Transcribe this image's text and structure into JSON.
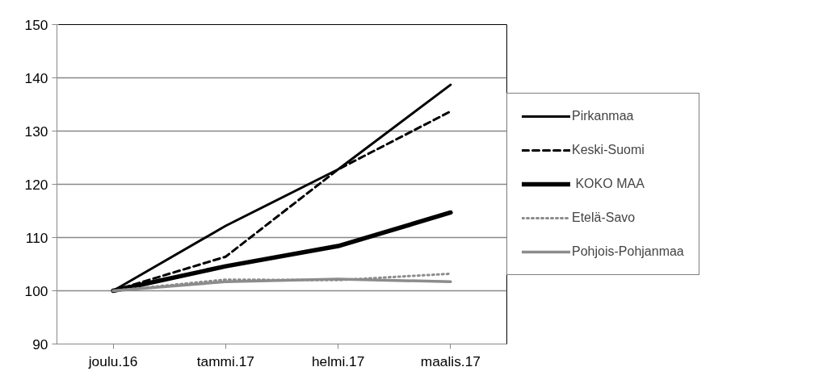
{
  "chart_data": {
    "type": "line",
    "categories": [
      "joulu.16",
      "tammi.17",
      "helmi.17",
      "maalis.17"
    ],
    "ylim": [
      90,
      150
    ],
    "yticks": [
      90,
      100,
      110,
      120,
      130,
      140,
      150
    ],
    "grid": "y",
    "legend": "right",
    "series": [
      {
        "name": "Pirkanmaa",
        "color": "#000000",
        "line_style": "solid",
        "values": [
          100,
          112.2,
          122.8,
          138.7
        ]
      },
      {
        "name": "Keski-Suomi",
        "color": "#000000",
        "line_style": "dashed",
        "values": [
          100,
          106.4,
          122.8,
          133.7
        ]
      },
      {
        "name": " KOKO MAA",
        "color": "#000000",
        "line_style": "solid",
        "values": [
          100,
          104.6,
          108.4,
          114.7
        ]
      },
      {
        "name": "Etelä-Savo",
        "color": "#8c8c8c",
        "line_style": "dotted",
        "values": [
          100,
          102.1,
          102.0,
          103.2
        ]
      },
      {
        "name": "Pohjois-Pohjanmaa",
        "color": "#8c8c8c",
        "line_style": "solid",
        "values": [
          100,
          101.7,
          102.2,
          101.7
        ]
      }
    ]
  }
}
